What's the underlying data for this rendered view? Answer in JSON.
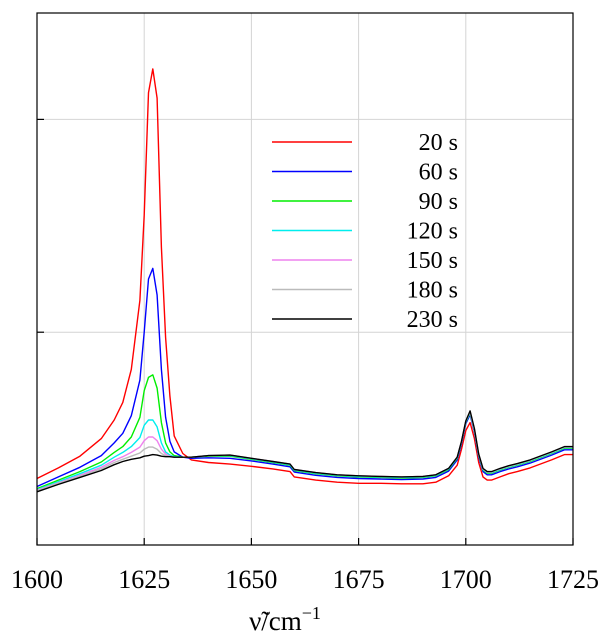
{
  "chart_data": {
    "type": "line",
    "title": "",
    "xlabel": "ν̃/cm",
    "xlabel_superscript": "−1",
    "ylabel": "",
    "xlim": [
      1600,
      1725
    ],
    "ylim": [
      0,
      1
    ],
    "x_ticks": [
      1600,
      1625,
      1650,
      1675,
      1700,
      1725
    ],
    "x_tick_labels": [
      "1600",
      "1625",
      "1650",
      "1675",
      "1700",
      "1725"
    ],
    "y_ticks": [
      0.4,
      0.8
    ],
    "y_tick_labels": [
      "",
      ""
    ],
    "grid": true,
    "legend_position": "upper-right",
    "series": [
      {
        "name": "20 s",
        "color": "#ff0000",
        "x": [
          1600,
          1605,
          1610,
          1615,
          1618,
          1620,
          1622,
          1624,
          1625,
          1626,
          1627,
          1628,
          1629,
          1630,
          1631,
          1632,
          1634,
          1636,
          1640,
          1645,
          1650,
          1655,
          1659,
          1660,
          1665,
          1670,
          1675,
          1680,
          1685,
          1690,
          1693,
          1696,
          1698,
          1699,
          1700,
          1701,
          1702,
          1703,
          1704,
          1705,
          1706,
          1708,
          1710,
          1712,
          1715,
          1720,
          1723,
          1725
        ],
        "y": [
          0.125,
          0.145,
          0.167,
          0.2,
          0.235,
          0.268,
          0.33,
          0.46,
          0.62,
          0.85,
          0.895,
          0.84,
          0.56,
          0.39,
          0.28,
          0.205,
          0.172,
          0.16,
          0.155,
          0.152,
          0.148,
          0.143,
          0.138,
          0.128,
          0.122,
          0.118,
          0.116,
          0.116,
          0.115,
          0.115,
          0.118,
          0.13,
          0.15,
          0.18,
          0.215,
          0.23,
          0.2,
          0.155,
          0.128,
          0.122,
          0.122,
          0.128,
          0.134,
          0.138,
          0.145,
          0.16,
          0.17,
          0.17
        ]
      },
      {
        "name": "60 s",
        "color": "#0000ff",
        "x": [
          1600,
          1605,
          1610,
          1615,
          1618,
          1620,
          1622,
          1624,
          1625,
          1626,
          1627,
          1628,
          1629,
          1630,
          1631,
          1632,
          1634,
          1636,
          1640,
          1645,
          1650,
          1655,
          1659,
          1660,
          1665,
          1670,
          1675,
          1680,
          1685,
          1690,
          1693,
          1696,
          1698,
          1699,
          1700,
          1701,
          1702,
          1703,
          1704,
          1705,
          1706,
          1708,
          1710,
          1712,
          1715,
          1720,
          1723,
          1725
        ],
        "y": [
          0.11,
          0.128,
          0.146,
          0.168,
          0.192,
          0.21,
          0.243,
          0.31,
          0.4,
          0.5,
          0.52,
          0.47,
          0.33,
          0.24,
          0.195,
          0.175,
          0.165,
          0.163,
          0.164,
          0.163,
          0.158,
          0.152,
          0.147,
          0.137,
          0.131,
          0.127,
          0.125,
          0.124,
          0.123,
          0.124,
          0.127,
          0.139,
          0.16,
          0.19,
          0.228,
          0.245,
          0.212,
          0.165,
          0.138,
          0.132,
          0.132,
          0.138,
          0.143,
          0.147,
          0.154,
          0.169,
          0.179,
          0.179
        ]
      },
      {
        "name": "90 s",
        "color": "#00ee00",
        "x": [
          1600,
          1605,
          1610,
          1615,
          1618,
          1620,
          1622,
          1624,
          1625,
          1626,
          1627,
          1628,
          1629,
          1630,
          1631,
          1632,
          1634,
          1636,
          1640,
          1645,
          1650,
          1655,
          1659,
          1660,
          1665,
          1670,
          1675,
          1680,
          1685,
          1690,
          1693,
          1696,
          1698,
          1699,
          1700,
          1701,
          1702,
          1703,
          1704,
          1705,
          1706,
          1708,
          1710,
          1712,
          1715,
          1720,
          1723,
          1725
        ],
        "y": [
          0.106,
          0.122,
          0.138,
          0.156,
          0.174,
          0.185,
          0.203,
          0.24,
          0.29,
          0.315,
          0.32,
          0.295,
          0.23,
          0.192,
          0.175,
          0.168,
          0.165,
          0.165,
          0.167,
          0.167,
          0.161,
          0.155,
          0.15,
          0.14,
          0.134,
          0.13,
          0.128,
          0.127,
          0.126,
          0.127,
          0.13,
          0.142,
          0.163,
          0.193,
          0.231,
          0.248,
          0.215,
          0.168,
          0.141,
          0.135,
          0.135,
          0.141,
          0.146,
          0.15,
          0.157,
          0.172,
          0.182,
          0.182
        ]
      },
      {
        "name": "120 s",
        "color": "#00eeee",
        "x": [
          1600,
          1605,
          1610,
          1615,
          1618,
          1620,
          1622,
          1624,
          1625,
          1626,
          1627,
          1628,
          1629,
          1630,
          1631,
          1632,
          1634,
          1636,
          1640,
          1645,
          1650,
          1655,
          1659,
          1660,
          1665,
          1670,
          1675,
          1680,
          1685,
          1690,
          1693,
          1696,
          1698,
          1699,
          1700,
          1701,
          1702,
          1703,
          1704,
          1705,
          1706,
          1708,
          1710,
          1712,
          1715,
          1720,
          1723,
          1725
        ],
        "y": [
          0.104,
          0.119,
          0.134,
          0.15,
          0.165,
          0.174,
          0.185,
          0.202,
          0.225,
          0.235,
          0.235,
          0.222,
          0.192,
          0.175,
          0.169,
          0.166,
          0.165,
          0.165,
          0.168,
          0.168,
          0.162,
          0.156,
          0.151,
          0.141,
          0.135,
          0.131,
          0.129,
          0.128,
          0.127,
          0.128,
          0.131,
          0.143,
          0.164,
          0.194,
          0.232,
          0.249,
          0.216,
          0.169,
          0.142,
          0.136,
          0.136,
          0.142,
          0.147,
          0.151,
          0.158,
          0.173,
          0.183,
          0.183
        ]
      },
      {
        "name": "150 s",
        "color": "#ee82ee",
        "x": [
          1600,
          1605,
          1610,
          1615,
          1618,
          1620,
          1622,
          1624,
          1625,
          1626,
          1627,
          1628,
          1629,
          1630,
          1631,
          1632,
          1634,
          1636,
          1640,
          1645,
          1650,
          1655,
          1659,
          1660,
          1665,
          1670,
          1675,
          1680,
          1685,
          1690,
          1693,
          1696,
          1698,
          1699,
          1700,
          1701,
          1702,
          1703,
          1704,
          1705,
          1706,
          1708,
          1710,
          1712,
          1715,
          1720,
          1723,
          1725
        ],
        "y": [
          0.103,
          0.117,
          0.131,
          0.146,
          0.159,
          0.166,
          0.174,
          0.184,
          0.196,
          0.203,
          0.203,
          0.196,
          0.18,
          0.171,
          0.167,
          0.165,
          0.165,
          0.165,
          0.168,
          0.169,
          0.163,
          0.157,
          0.152,
          0.142,
          0.136,
          0.132,
          0.13,
          0.129,
          0.128,
          0.129,
          0.132,
          0.144,
          0.165,
          0.195,
          0.233,
          0.25,
          0.217,
          0.17,
          0.143,
          0.137,
          0.137,
          0.143,
          0.148,
          0.152,
          0.159,
          0.174,
          0.184,
          0.184
        ]
      },
      {
        "name": "180 s",
        "color": "#bbbbbb",
        "x": [
          1600,
          1605,
          1610,
          1615,
          1618,
          1620,
          1622,
          1624,
          1625,
          1626,
          1627,
          1628,
          1629,
          1630,
          1631,
          1632,
          1634,
          1636,
          1640,
          1645,
          1650,
          1655,
          1659,
          1660,
          1665,
          1670,
          1675,
          1680,
          1685,
          1690,
          1693,
          1696,
          1698,
          1699,
          1700,
          1701,
          1702,
          1703,
          1704,
          1705,
          1706,
          1708,
          1710,
          1712,
          1715,
          1720,
          1723,
          1725
        ],
        "y": [
          0.102,
          0.116,
          0.129,
          0.143,
          0.155,
          0.161,
          0.167,
          0.173,
          0.18,
          0.184,
          0.184,
          0.18,
          0.172,
          0.168,
          0.166,
          0.165,
          0.165,
          0.165,
          0.168,
          0.169,
          0.163,
          0.157,
          0.152,
          0.142,
          0.136,
          0.132,
          0.13,
          0.129,
          0.128,
          0.129,
          0.132,
          0.144,
          0.165,
          0.195,
          0.233,
          0.25,
          0.217,
          0.17,
          0.143,
          0.137,
          0.137,
          0.143,
          0.148,
          0.152,
          0.159,
          0.174,
          0.184,
          0.184
        ]
      },
      {
        "name": "230 s",
        "color": "#000000",
        "x": [
          1600,
          1605,
          1610,
          1615,
          1618,
          1620,
          1622,
          1624,
          1625,
          1626,
          1627,
          1628,
          1629,
          1630,
          1631,
          1632,
          1634,
          1636,
          1640,
          1645,
          1650,
          1655,
          1659,
          1660,
          1665,
          1670,
          1675,
          1680,
          1685,
          1690,
          1693,
          1696,
          1698,
          1699,
          1700,
          1701,
          1702,
          1703,
          1704,
          1705,
          1706,
          1708,
          1710,
          1712,
          1715,
          1720,
          1723,
          1725
        ],
        "y": [
          0.1,
          0.114,
          0.127,
          0.14,
          0.151,
          0.157,
          0.161,
          0.164,
          0.167,
          0.168,
          0.17,
          0.169,
          0.167,
          0.166,
          0.166,
          0.165,
          0.165,
          0.165,
          0.168,
          0.169,
          0.163,
          0.157,
          0.152,
          0.142,
          0.136,
          0.132,
          0.13,
          0.129,
          0.128,
          0.129,
          0.132,
          0.144,
          0.165,
          0.195,
          0.233,
          0.252,
          0.219,
          0.171,
          0.144,
          0.138,
          0.138,
          0.144,
          0.149,
          0.153,
          0.16,
          0.175,
          0.185,
          0.185
        ]
      }
    ]
  }
}
